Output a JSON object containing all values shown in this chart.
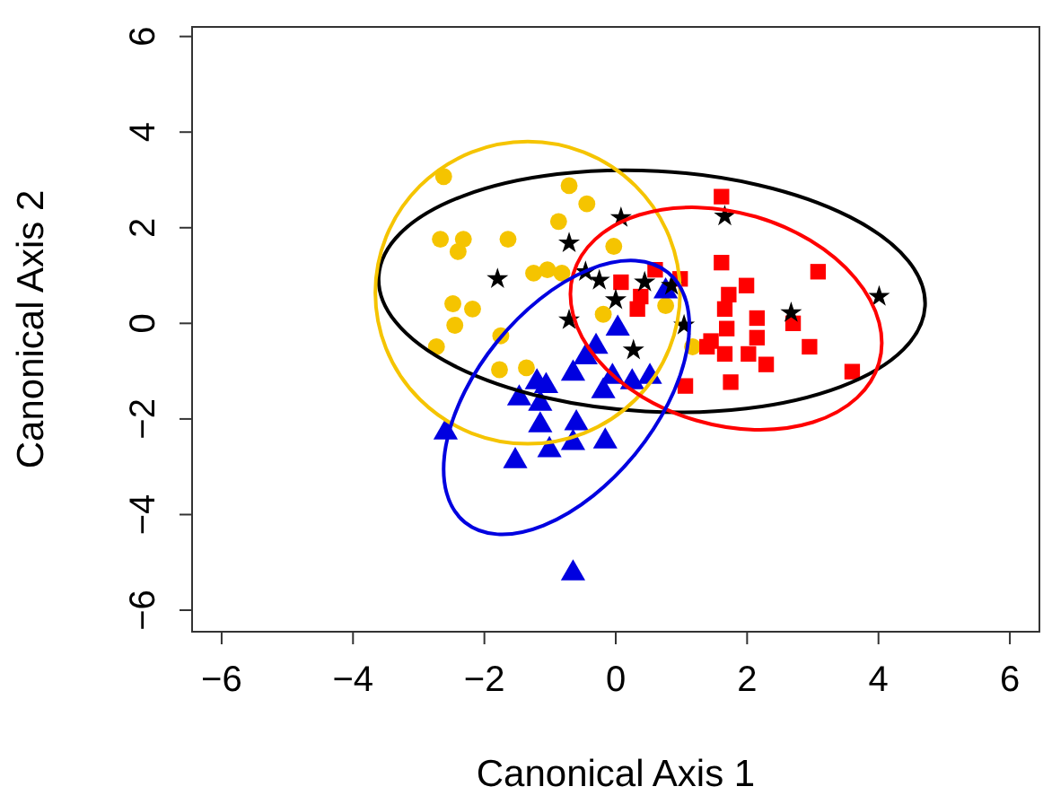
{
  "chart_data": {
    "type": "scatter",
    "xlabel": "Canonical Axis 1",
    "ylabel": "Canonical Axis 2",
    "xlim": [
      -6.45,
      6.45
    ],
    "ylim": [
      -6.45,
      6.2
    ],
    "xticks": [
      -6,
      -4,
      -2,
      0,
      2,
      4,
      6
    ],
    "yticks": [
      -6,
      -4,
      -2,
      0,
      2,
      4,
      6
    ],
    "series": [
      {
        "marker": "circle",
        "color": "#f5c400",
        "x": [
          -2.62,
          -0.71,
          -0.44,
          -0.87,
          -2.67,
          -2.32,
          -2.4,
          -1.64,
          -1.25,
          -1.04,
          -0.82,
          -2.48,
          -2.18,
          -2.45,
          -2.73,
          -1.75,
          -1.36,
          -1.77,
          -0.03,
          -0.19,
          0.76,
          1.17
        ],
        "values": [
          3.07,
          2.88,
          2.5,
          2.13,
          1.76,
          1.76,
          1.5,
          1.76,
          1.05,
          1.12,
          1.05,
          0.41,
          0.3,
          -0.04,
          -0.49,
          -0.26,
          -0.93,
          -0.97,
          1.61,
          0.19,
          0.37,
          -0.49
        ]
      },
      {
        "marker": "square",
        "color": "#ff0000",
        "x": [
          1.61,
          1.61,
          3.08,
          1.99,
          1.72,
          1.66,
          0.98,
          0.6,
          0.08,
          0.38,
          0.33,
          2.15,
          2.7,
          1.69,
          2.15,
          2.95,
          1.45,
          1.66,
          2.02,
          2.29,
          3.6,
          1.06,
          1.75,
          1.39
        ],
        "values": [
          2.65,
          1.27,
          1.08,
          0.79,
          0.6,
          0.3,
          0.93,
          1.12,
          0.86,
          0.56,
          0.3,
          0.11,
          0.0,
          -0.11,
          -0.3,
          -0.49,
          -0.37,
          -0.64,
          -0.64,
          -0.86,
          -1.01,
          -1.31,
          -1.23,
          -0.49
        ]
      },
      {
        "marker": "triangle",
        "color": "#0000e0",
        "x": [
          0.76,
          0.03,
          -0.3,
          -0.46,
          -0.65,
          -0.05,
          0.52,
          0.25,
          -0.19,
          -1.06,
          -1.2,
          -1.47,
          -1.15,
          -2.59,
          -1.15,
          -0.6,
          -0.65,
          -0.16,
          -1.01,
          -1.53,
          -0.65
        ],
        "values": [
          0.67,
          -0.11,
          -0.49,
          -0.71,
          -1.05,
          -1.12,
          -1.12,
          -1.23,
          -1.42,
          -1.31,
          -1.23,
          -1.57,
          -1.68,
          -2.28,
          -2.13,
          -2.09,
          -2.5,
          -2.47,
          -2.65,
          -2.88,
          -5.23
        ]
      },
      {
        "marker": "star",
        "color": "#000000",
        "x": [
          -1.8,
          -0.71,
          0.08,
          1.66,
          -0.46,
          -0.25,
          0.44,
          0.85,
          0.0,
          -0.71,
          1.04,
          0.27,
          2.67,
          4.01
        ],
        "values": [
          0.93,
          1.68,
          2.21,
          2.24,
          1.08,
          0.9,
          0.86,
          0.79,
          0.49,
          0.07,
          -0.04,
          -0.56,
          0.22,
          0.56
        ]
      }
    ]
  }
}
